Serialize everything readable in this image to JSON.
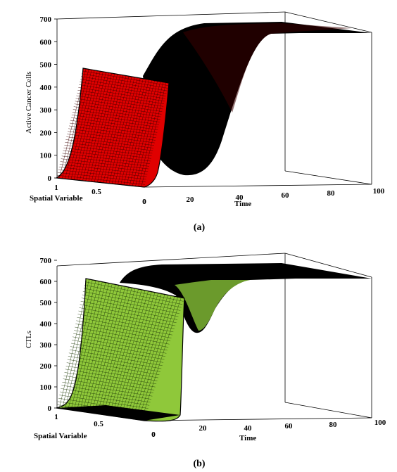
{
  "chart_data": [
    {
      "type": "surface",
      "panel_label": "(a)",
      "zlabel": "Active Cancer Cells",
      "xlabel": "Spatial Variable",
      "ylabel": "Time",
      "x_ticks": [
        "1",
        "0.5",
        "0"
      ],
      "t_ticks": [
        "0",
        "20",
        "40",
        "60",
        "80",
        "100"
      ],
      "z_ticks": [
        "0",
        "100",
        "200",
        "300",
        "400",
        "500",
        "600",
        "700"
      ],
      "xlim": [
        0,
        1
      ],
      "tlim": [
        0,
        100
      ],
      "zlim": [
        0,
        700
      ],
      "colors": {
        "mesh": "#e00000",
        "grid_line": "#3a0000",
        "far_surface": "#000000"
      },
      "series": [
        {
          "time": [
            0,
            5,
            10,
            15,
            20,
            25,
            30,
            35,
            40,
            45,
            50,
            55,
            60,
            70,
            80,
            90,
            100
          ],
          "value": [
            520,
            110,
            10,
            0,
            10,
            60,
            190,
            360,
            500,
            580,
            610,
            625,
            630,
            630,
            630,
            630,
            630
          ]
        }
      ]
    },
    {
      "type": "surface",
      "panel_label": "(b)",
      "zlabel": "CTLs",
      "xlabel": "Spatial Variable",
      "ylabel": "Time",
      "x_ticks": [
        "1",
        "0.5",
        "0"
      ],
      "t_ticks": [
        "0",
        "20",
        "40",
        "60",
        "80",
        "100"
      ],
      "z_ticks": [
        "0",
        "100",
        "200",
        "300",
        "400",
        "500",
        "600",
        "700"
      ],
      "xlim": [
        0,
        1
      ],
      "tlim": [
        0,
        100
      ],
      "zlim": [
        0,
        700
      ],
      "colors": {
        "mesh": "#8fc83a",
        "grid_line": "#1f3a08",
        "far_surface": "#000000"
      },
      "series": [
        {
          "time": [
            0,
            5,
            10,
            15,
            20,
            25,
            30,
            35,
            40,
            45,
            50,
            60,
            70,
            80,
            90,
            100
          ],
          "value": [
            640,
            500,
            430,
            380,
            420,
            520,
            590,
            615,
            625,
            630,
            630,
            630,
            630,
            630,
            630,
            630
          ]
        }
      ]
    }
  ]
}
